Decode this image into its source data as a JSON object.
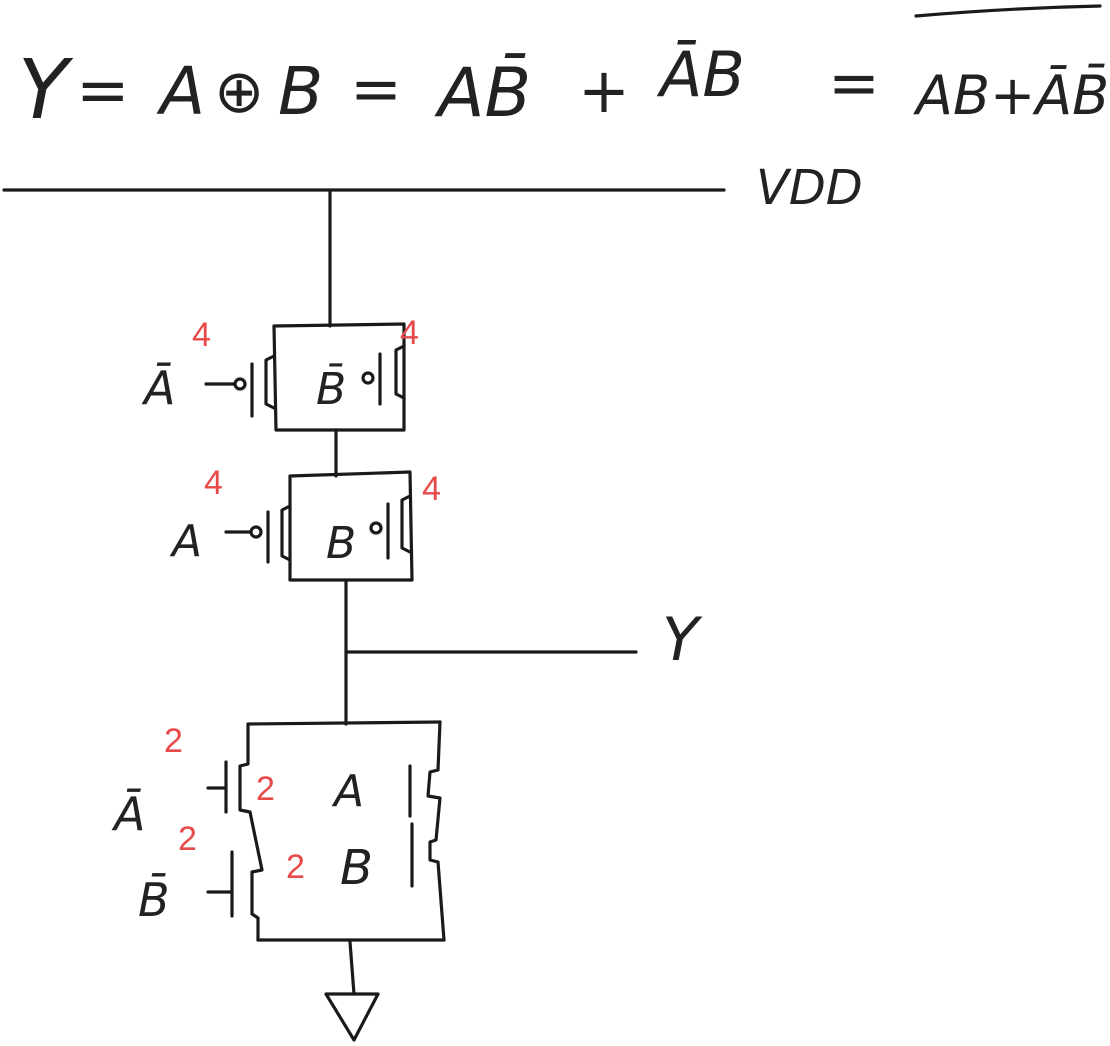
{
  "equation": {
    "lhs": "Y",
    "eq1": "=",
    "op1_left": "A",
    "op1_symbol": "⊕",
    "op1_right": "B",
    "eq2": "=",
    "term1": "AB̄",
    "plus": "+",
    "term2": "ĀB",
    "eq3": "=",
    "term3": "AB+ĀB̄"
  },
  "rails": {
    "vdd_label": "VDD",
    "output_label": "Y"
  },
  "pmos": [
    {
      "gate": "Ā",
      "size": "4"
    },
    {
      "gate": "B̄",
      "size": "4"
    },
    {
      "gate": "A",
      "size": "4"
    },
    {
      "gate": "B",
      "size": "4"
    }
  ],
  "nmos": [
    {
      "gate": "Ā",
      "size": "2"
    },
    {
      "gate": "B̄",
      "size": "2"
    },
    {
      "gate": "A",
      "size": "2"
    },
    {
      "gate": "B",
      "size": "2"
    }
  ],
  "colors": {
    "ink": "#1a1a1a",
    "size_label": "#e84a4a"
  }
}
